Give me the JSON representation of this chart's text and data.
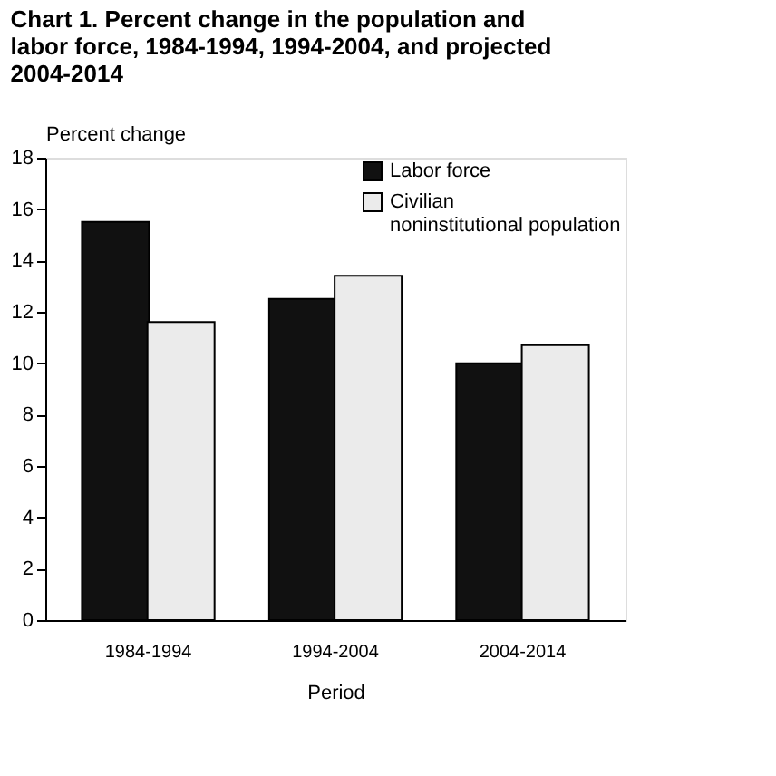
{
  "chart_data": {
    "type": "bar",
    "title": "Chart 1. Percent change in the population and labor force, 1984-1994, 1994-2004, and projected 2004-2014",
    "xlabel": "Period",
    "ylabel": "Percent change",
    "categories": [
      "1984-1994",
      "1994-2004",
      "2004-2014"
    ],
    "series": [
      {
        "name": "Labor force",
        "color": "#111111",
        "values": [
          15.5,
          12.5,
          10.0
        ]
      },
      {
        "name": "Civilian noninstitutional population",
        "color": "#ebebeb",
        "values": [
          11.6,
          13.4,
          10.7
        ]
      }
    ],
    "ylim": [
      0,
      18
    ],
    "yticks": [
      0,
      2,
      4,
      6,
      8,
      10,
      12,
      14,
      16,
      18
    ],
    "grid": false,
    "legend": "top right"
  }
}
